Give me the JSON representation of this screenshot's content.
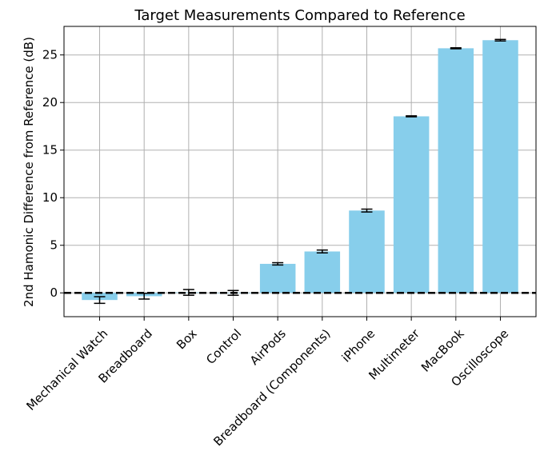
{
  "chart_data": {
    "type": "bar",
    "title": "Target Measurements Compared to Reference",
    "xlabel": "",
    "ylabel": "2nd Hamonic Difference from Reference (dB)",
    "categories": [
      "Mechanical Watch",
      "Breadboard",
      "Box",
      "Control",
      "AirPods",
      "Breadboard (Components)",
      "iPhone",
      "Multimeter",
      "MacBook",
      "Oscilloscope"
    ],
    "values": [
      -0.75,
      -0.35,
      0.05,
      0.0,
      3.05,
      4.35,
      8.65,
      18.55,
      25.7,
      26.55
    ],
    "errors": [
      0.35,
      0.3,
      0.3,
      0.25,
      0.12,
      0.15,
      0.15,
      0.05,
      0.05,
      0.08
    ],
    "ylim": [
      -2.5,
      28.0
    ],
    "yticks": [
      0,
      5,
      10,
      15,
      20,
      25
    ],
    "reference_line": 0,
    "grid": true,
    "colors": {
      "bar": "#87ceeb",
      "grid": "#b0b0b0",
      "error": "#000000",
      "reference": "#000000"
    }
  }
}
